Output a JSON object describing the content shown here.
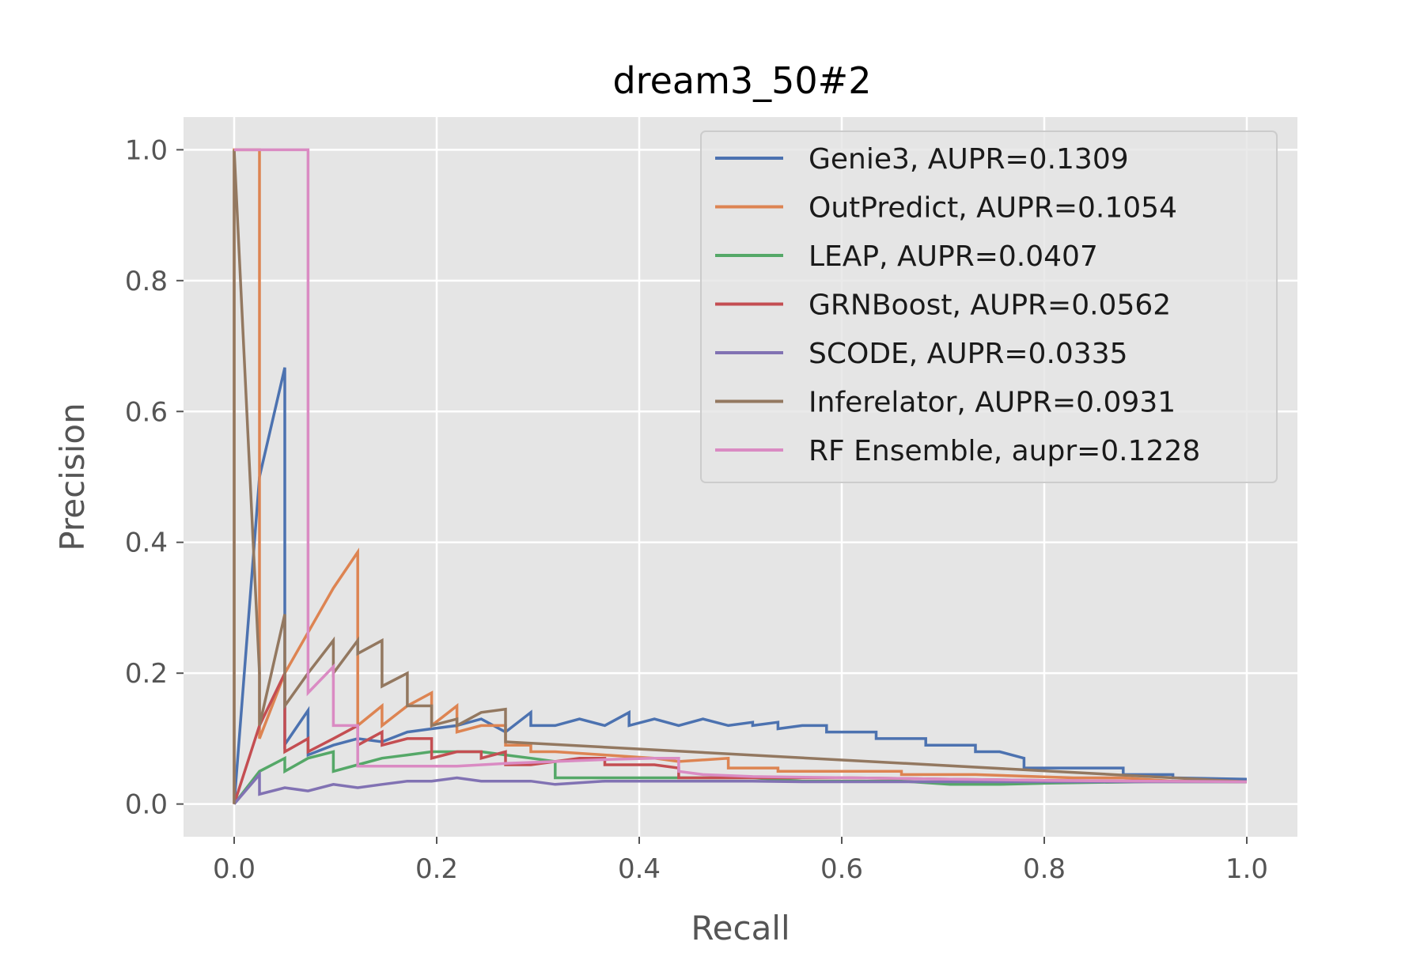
{
  "chart_data": {
    "type": "line",
    "title": "dream3_50#2",
    "xlabel": "Recall",
    "ylabel": "Precision",
    "xlim": [
      -0.05,
      1.05
    ],
    "ylim": [
      -0.05,
      1.05
    ],
    "xticks": [
      "0.0",
      "0.2",
      "0.4",
      "0.6",
      "0.8",
      "1.0"
    ],
    "yticks": [
      "0.0",
      "0.2",
      "0.4",
      "0.6",
      "0.8",
      "1.0"
    ],
    "grid": true,
    "legend_position": "top-right",
    "series": [
      {
        "name": "Genie3, AUPR=0.1309",
        "color": "#4c72b0",
        "points": [
          [
            0,
            0
          ],
          [
            0.025,
            0.5
          ],
          [
            0.05,
            0.667
          ],
          [
            0.05,
            0.091
          ],
          [
            0.073,
            0.143
          ],
          [
            0.073,
            0.075
          ],
          [
            0.098,
            0.09
          ],
          [
            0.122,
            0.1
          ],
          [
            0.146,
            0.095
          ],
          [
            0.171,
            0.11
          ],
          [
            0.195,
            0.115
          ],
          [
            0.22,
            0.12
          ],
          [
            0.244,
            0.13
          ],
          [
            0.268,
            0.11
          ],
          [
            0.293,
            0.14
          ],
          [
            0.293,
            0.12
          ],
          [
            0.317,
            0.12
          ],
          [
            0.341,
            0.13
          ],
          [
            0.366,
            0.12
          ],
          [
            0.39,
            0.14
          ],
          [
            0.39,
            0.12
          ],
          [
            0.415,
            0.13
          ],
          [
            0.439,
            0.12
          ],
          [
            0.463,
            0.13
          ],
          [
            0.488,
            0.12
          ],
          [
            0.512,
            0.125
          ],
          [
            0.512,
            0.12
          ],
          [
            0.537,
            0.125
          ],
          [
            0.537,
            0.115
          ],
          [
            0.561,
            0.12
          ],
          [
            0.585,
            0.12
          ],
          [
            0.585,
            0.11
          ],
          [
            0.61,
            0.11
          ],
          [
            0.634,
            0.11
          ],
          [
            0.634,
            0.1
          ],
          [
            0.659,
            0.1
          ],
          [
            0.683,
            0.1
          ],
          [
            0.683,
            0.09
          ],
          [
            0.707,
            0.09
          ],
          [
            0.732,
            0.09
          ],
          [
            0.732,
            0.08
          ],
          [
            0.756,
            0.08
          ],
          [
            0.78,
            0.07
          ],
          [
            0.78,
            0.055
          ],
          [
            0.829,
            0.055
          ],
          [
            0.878,
            0.055
          ],
          [
            0.878,
            0.045
          ],
          [
            0.927,
            0.045
          ],
          [
            0.927,
            0.04
          ],
          [
            1.0,
            0.038
          ]
        ]
      },
      {
        "name": "OutPredict, AUPR=0.1054",
        "color": "#dd8452",
        "points": [
          [
            0,
            0
          ],
          [
            0,
            1.0
          ],
          [
            0.025,
            1.0
          ],
          [
            0.025,
            0.1
          ],
          [
            0.05,
            0.2
          ],
          [
            0.098,
            0.33
          ],
          [
            0.122,
            0.385
          ],
          [
            0.122,
            0.12
          ],
          [
            0.146,
            0.15
          ],
          [
            0.146,
            0.12
          ],
          [
            0.171,
            0.15
          ],
          [
            0.195,
            0.17
          ],
          [
            0.195,
            0.12
          ],
          [
            0.22,
            0.15
          ],
          [
            0.22,
            0.11
          ],
          [
            0.244,
            0.12
          ],
          [
            0.268,
            0.12
          ],
          [
            0.268,
            0.09
          ],
          [
            0.293,
            0.09
          ],
          [
            0.293,
            0.08
          ],
          [
            0.317,
            0.08
          ],
          [
            0.366,
            0.075
          ],
          [
            0.415,
            0.07
          ],
          [
            0.439,
            0.065
          ],
          [
            0.488,
            0.07
          ],
          [
            0.488,
            0.055
          ],
          [
            0.537,
            0.055
          ],
          [
            0.537,
            0.05
          ],
          [
            0.61,
            0.05
          ],
          [
            0.659,
            0.05
          ],
          [
            0.659,
            0.045
          ],
          [
            0.732,
            0.045
          ],
          [
            0.829,
            0.04
          ],
          [
            0.878,
            0.04
          ],
          [
            0.927,
            0.035
          ],
          [
            1.0,
            0.034
          ]
        ]
      },
      {
        "name": "LEAP, AUPR=0.0407",
        "color": "#55a868",
        "points": [
          [
            0,
            0
          ],
          [
            0.025,
            0.05
          ],
          [
            0.05,
            0.07
          ],
          [
            0.05,
            0.05
          ],
          [
            0.073,
            0.07
          ],
          [
            0.098,
            0.08
          ],
          [
            0.098,
            0.05
          ],
          [
            0.122,
            0.06
          ],
          [
            0.146,
            0.07
          ],
          [
            0.171,
            0.075
          ],
          [
            0.195,
            0.08
          ],
          [
            0.22,
            0.08
          ],
          [
            0.244,
            0.08
          ],
          [
            0.268,
            0.075
          ],
          [
            0.293,
            0.07
          ],
          [
            0.317,
            0.065
          ],
          [
            0.317,
            0.04
          ],
          [
            0.366,
            0.04
          ],
          [
            0.415,
            0.04
          ],
          [
            0.463,
            0.04
          ],
          [
            0.512,
            0.04
          ],
          [
            0.561,
            0.035
          ],
          [
            0.61,
            0.035
          ],
          [
            0.659,
            0.035
          ],
          [
            0.707,
            0.03
          ],
          [
            0.756,
            0.03
          ],
          [
            0.805,
            0.032
          ],
          [
            0.854,
            0.033
          ],
          [
            0.903,
            0.034
          ],
          [
            1.0,
            0.034
          ]
        ]
      },
      {
        "name": "GRNBoost, AUPR=0.0562",
        "color": "#c44e52",
        "points": [
          [
            0,
            0
          ],
          [
            0.025,
            0.12
          ],
          [
            0.05,
            0.2
          ],
          [
            0.05,
            0.08
          ],
          [
            0.073,
            0.1
          ],
          [
            0.073,
            0.08
          ],
          [
            0.098,
            0.1
          ],
          [
            0.122,
            0.12
          ],
          [
            0.122,
            0.09
          ],
          [
            0.146,
            0.11
          ],
          [
            0.146,
            0.09
          ],
          [
            0.171,
            0.1
          ],
          [
            0.195,
            0.1
          ],
          [
            0.195,
            0.07
          ],
          [
            0.22,
            0.08
          ],
          [
            0.244,
            0.08
          ],
          [
            0.244,
            0.07
          ],
          [
            0.268,
            0.08
          ],
          [
            0.268,
            0.06
          ],
          [
            0.293,
            0.06
          ],
          [
            0.317,
            0.065
          ],
          [
            0.341,
            0.07
          ],
          [
            0.366,
            0.07
          ],
          [
            0.366,
            0.06
          ],
          [
            0.39,
            0.06
          ],
          [
            0.415,
            0.06
          ],
          [
            0.439,
            0.055
          ],
          [
            0.439,
            0.04
          ],
          [
            0.488,
            0.04
          ],
          [
            0.537,
            0.04
          ],
          [
            0.61,
            0.04
          ],
          [
            0.707,
            0.038
          ],
          [
            0.805,
            0.036
          ],
          [
            0.903,
            0.035
          ],
          [
            1.0,
            0.034
          ]
        ]
      },
      {
        "name": "SCODE, AUPR=0.0335",
        "color": "#8172b3",
        "points": [
          [
            0,
            0
          ],
          [
            0.025,
            0.045
          ],
          [
            0.025,
            0.015
          ],
          [
            0.05,
            0.025
          ],
          [
            0.073,
            0.02
          ],
          [
            0.098,
            0.03
          ],
          [
            0.122,
            0.025
          ],
          [
            0.146,
            0.03
          ],
          [
            0.171,
            0.035
          ],
          [
            0.195,
            0.035
          ],
          [
            0.22,
            0.04
          ],
          [
            0.244,
            0.035
          ],
          [
            0.268,
            0.035
          ],
          [
            0.293,
            0.035
          ],
          [
            0.317,
            0.03
          ],
          [
            0.366,
            0.035
          ],
          [
            0.415,
            0.035
          ],
          [
            0.463,
            0.035
          ],
          [
            0.512,
            0.035
          ],
          [
            0.561,
            0.034
          ],
          [
            0.61,
            0.034
          ],
          [
            0.659,
            0.034
          ],
          [
            0.707,
            0.034
          ],
          [
            0.805,
            0.034
          ],
          [
            0.903,
            0.034
          ],
          [
            1.0,
            0.034
          ]
        ]
      },
      {
        "name": "Inferelator, AUPR=0.0931",
        "color": "#937860",
        "points": [
          [
            0,
            0
          ],
          [
            0,
            1.0
          ],
          [
            0.025,
            0.2
          ],
          [
            0.025,
            0.12
          ],
          [
            0.05,
            0.29
          ],
          [
            0.05,
            0.15
          ],
          [
            0.073,
            0.2
          ],
          [
            0.098,
            0.25
          ],
          [
            0.098,
            0.2
          ],
          [
            0.122,
            0.25
          ],
          [
            0.122,
            0.23
          ],
          [
            0.146,
            0.25
          ],
          [
            0.146,
            0.18
          ],
          [
            0.171,
            0.2
          ],
          [
            0.171,
            0.15
          ],
          [
            0.195,
            0.15
          ],
          [
            0.195,
            0.12
          ],
          [
            0.22,
            0.13
          ],
          [
            0.22,
            0.12
          ],
          [
            0.244,
            0.14
          ],
          [
            0.268,
            0.145
          ],
          [
            0.268,
            0.095
          ],
          [
            1.0,
            0.034
          ]
        ]
      },
      {
        "name": "RF Ensemble, aupr=0.1228",
        "color": "#da8bc3",
        "points": [
          [
            0,
            1.0
          ],
          [
            0.073,
            1.0
          ],
          [
            0.073,
            0.17
          ],
          [
            0.098,
            0.21
          ],
          [
            0.098,
            0.12
          ],
          [
            0.122,
            0.12
          ],
          [
            0.122,
            0.058
          ],
          [
            0.171,
            0.058
          ],
          [
            0.22,
            0.058
          ],
          [
            0.268,
            0.062
          ],
          [
            0.317,
            0.065
          ],
          [
            0.366,
            0.068
          ],
          [
            0.415,
            0.07
          ],
          [
            0.439,
            0.07
          ],
          [
            0.439,
            0.05
          ],
          [
            0.463,
            0.045
          ],
          [
            0.512,
            0.042
          ],
          [
            0.61,
            0.04
          ],
          [
            0.707,
            0.038
          ],
          [
            0.805,
            0.036
          ],
          [
            0.903,
            0.035
          ],
          [
            1.0,
            0.034
          ]
        ]
      }
    ]
  }
}
